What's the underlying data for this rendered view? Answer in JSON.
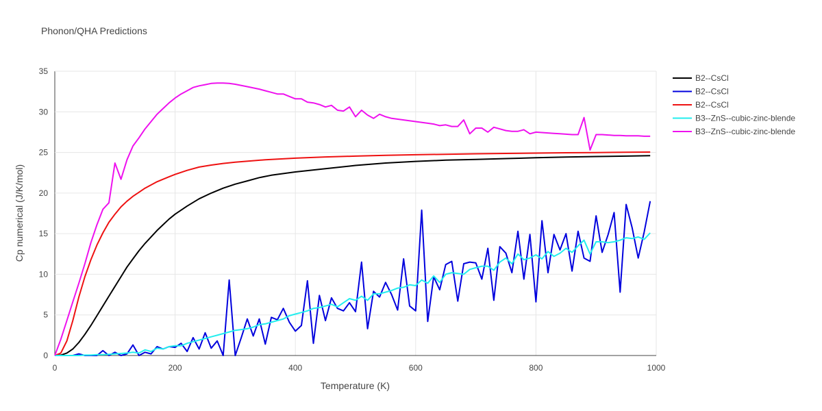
{
  "chart_data": {
    "type": "line",
    "title": "Phonon/QHA Predictions",
    "xlabel": "Temperature (K)",
    "ylabel": "Cp numerical (J/K/mol)",
    "xlim": [
      0,
      1000
    ],
    "ylim": [
      0,
      35
    ],
    "xticks": [
      0,
      200,
      400,
      600,
      800,
      1000
    ],
    "yticks": [
      0,
      5,
      10,
      15,
      20,
      25,
      30,
      35
    ],
    "grid": true,
    "legend_position": "right",
    "series": [
      {
        "name": "B2--CsCl",
        "color": "#000000",
        "x": [
          0,
          10,
          20,
          30,
          40,
          50,
          60,
          70,
          80,
          90,
          100,
          110,
          120,
          130,
          140,
          150,
          160,
          170,
          180,
          190,
          200,
          220,
          240,
          260,
          280,
          300,
          320,
          340,
          360,
          380,
          400,
          450,
          500,
          550,
          600,
          650,
          700,
          750,
          800,
          850,
          900,
          950,
          990
        ],
        "y": [
          0,
          0.05,
          0.3,
          0.8,
          1.6,
          2.6,
          3.7,
          4.9,
          6.1,
          7.3,
          8.5,
          9.7,
          10.9,
          11.9,
          12.9,
          13.8,
          14.6,
          15.4,
          16.1,
          16.8,
          17.4,
          18.4,
          19.3,
          20.0,
          20.6,
          21.1,
          21.5,
          21.9,
          22.2,
          22.4,
          22.6,
          23.0,
          23.4,
          23.7,
          23.9,
          24.05,
          24.15,
          24.25,
          24.35,
          24.43,
          24.5,
          24.55,
          24.6
        ]
      },
      {
        "name": "B2--CsCl",
        "color": "#0000dd",
        "x": [
          0,
          10,
          20,
          30,
          40,
          50,
          60,
          70,
          80,
          90,
          100,
          110,
          120,
          130,
          140,
          150,
          160,
          170,
          180,
          190,
          200,
          210,
          220,
          230,
          240,
          250,
          260,
          270,
          280,
          290,
          300,
          310,
          320,
          330,
          340,
          350,
          360,
          370,
          380,
          390,
          400,
          410,
          420,
          430,
          440,
          450,
          460,
          470,
          480,
          490,
          500,
          510,
          520,
          530,
          540,
          550,
          560,
          570,
          580,
          590,
          600,
          610,
          620,
          630,
          640,
          650,
          660,
          670,
          680,
          690,
          700,
          710,
          720,
          730,
          740,
          750,
          760,
          770,
          780,
          790,
          800,
          810,
          820,
          830,
          840,
          850,
          860,
          870,
          880,
          890,
          900,
          910,
          920,
          930,
          940,
          950,
          960,
          970,
          980,
          990
        ],
        "y": [
          0,
          0,
          0,
          0,
          0.2,
          0,
          0,
          0,
          0.6,
          0,
          0.4,
          0,
          0.2,
          1.3,
          0,
          0.4,
          0.2,
          1.1,
          0.8,
          1.1,
          1.0,
          1.5,
          0.5,
          2.2,
          0.8,
          2.8,
          0.9,
          1.8,
          0,
          9.3,
          0,
          2.2,
          4.5,
          2.4,
          4.5,
          1.4,
          4.7,
          4.4,
          5.8,
          4.1,
          3.0,
          3.7,
          9.2,
          1.5,
          7.4,
          4.3,
          7.1,
          5.8,
          5.5,
          6.5,
          5.4,
          11.5,
          3.3,
          7.9,
          7.2,
          9.0,
          7.5,
          5.6,
          11.9,
          6.1,
          5.5,
          17.9,
          4.2,
          9.7,
          8.1,
          11.2,
          11.6,
          6.7,
          11.3,
          11.5,
          11.4,
          9.4,
          13.2,
          6.8,
          13.4,
          12.6,
          10.2,
          15.3,
          9.4,
          14.9,
          6.6,
          16.6,
          10.2,
          14.9,
          13.0,
          15.0,
          10.4,
          15.3,
          12.0,
          11.6,
          17.2,
          12.7,
          14.9,
          17.6,
          7.8,
          18.6,
          15.7,
          12.0,
          15.2,
          19.0
        ]
      },
      {
        "name": "B2--CsCl",
        "color": "#ee1111",
        "x": [
          0,
          10,
          20,
          30,
          40,
          50,
          60,
          70,
          80,
          90,
          100,
          110,
          120,
          130,
          140,
          150,
          160,
          170,
          180,
          190,
          200,
          220,
          240,
          260,
          280,
          300,
          350,
          400,
          450,
          500,
          550,
          600,
          650,
          700,
          750,
          800,
          850,
          900,
          950,
          990
        ],
        "y": [
          0,
          0.3,
          1.8,
          4.3,
          7.2,
          9.7,
          11.8,
          13.6,
          15.1,
          16.4,
          17.4,
          18.3,
          19.0,
          19.6,
          20.1,
          20.6,
          21.0,
          21.4,
          21.7,
          22.0,
          22.3,
          22.8,
          23.2,
          23.45,
          23.65,
          23.8,
          24.1,
          24.3,
          24.45,
          24.55,
          24.65,
          24.72,
          24.78,
          24.84,
          24.88,
          24.92,
          24.96,
          24.99,
          25.02,
          25.05
        ]
      },
      {
        "name": "B3--ZnS--cubic-zinc-blende",
        "color": "#22eeee",
        "x": [
          0,
          10,
          20,
          30,
          40,
          50,
          60,
          70,
          80,
          90,
          100,
          110,
          120,
          130,
          140,
          150,
          160,
          170,
          180,
          190,
          200,
          210,
          220,
          230,
          240,
          250,
          260,
          270,
          280,
          290,
          300,
          310,
          320,
          330,
          340,
          350,
          360,
          370,
          380,
          390,
          400,
          410,
          420,
          430,
          440,
          450,
          460,
          470,
          480,
          490,
          500,
          510,
          520,
          530,
          540,
          550,
          560,
          570,
          580,
          590,
          600,
          610,
          620,
          630,
          640,
          650,
          660,
          670,
          680,
          690,
          700,
          710,
          720,
          730,
          740,
          750,
          760,
          770,
          780,
          790,
          800,
          810,
          820,
          830,
          840,
          850,
          860,
          870,
          880,
          890,
          900,
          910,
          920,
          930,
          940,
          950,
          960,
          970,
          980,
          990
        ],
        "y": [
          0,
          0,
          0,
          0,
          0,
          0.05,
          0.05,
          0.1,
          0.1,
          0.15,
          0.2,
          0.25,
          0.3,
          0.4,
          0.3,
          0.7,
          0.5,
          0.9,
          0.8,
          1.1,
          1.2,
          1.2,
          1.5,
          1.7,
          1.9,
          2.1,
          2.3,
          2.5,
          2.7,
          2.9,
          3.1,
          3.2,
          3.3,
          3.5,
          3.8,
          3.9,
          4.1,
          4.3,
          4.5,
          4.9,
          5.1,
          5.3,
          5.5,
          5.8,
          5.9,
          6.1,
          6.3,
          6.0,
          6.5,
          7.0,
          6.8,
          7.3,
          6.8,
          7.6,
          7.6,
          7.8,
          8.0,
          8.3,
          8.4,
          8.7,
          8.6,
          9.3,
          8.9,
          9.8,
          9.0,
          10.0,
          10.2,
          10.1,
          10.0,
          10.6,
          10.8,
          11.0,
          11.0,
          10.5,
          11.5,
          12.0,
          11.3,
          12.5,
          11.8,
          12.0,
          12.4,
          11.9,
          12.8,
          12.2,
          12.6,
          13.2,
          12.7,
          13.5,
          14.2,
          12.5,
          14.0,
          14.0,
          13.9,
          14.0,
          14.2,
          14.5,
          14.4,
          14.6,
          14.3,
          15.1
        ]
      },
      {
        "name": "B3--ZnS--cubic-zinc-blende",
        "color": "#ee11ee",
        "x": [
          0,
          10,
          20,
          30,
          40,
          50,
          60,
          70,
          80,
          90,
          100,
          110,
          120,
          130,
          140,
          150,
          160,
          170,
          180,
          190,
          200,
          210,
          220,
          230,
          240,
          250,
          260,
          270,
          280,
          290,
          300,
          320,
          340,
          350,
          360,
          370,
          380,
          390,
          400,
          410,
          420,
          430,
          440,
          450,
          460,
          470,
          480,
          490,
          500,
          510,
          520,
          530,
          540,
          550,
          560,
          580,
          600,
          620,
          630,
          640,
          650,
          660,
          670,
          680,
          690,
          700,
          710,
          720,
          730,
          740,
          750,
          760,
          770,
          780,
          790,
          800,
          810,
          820,
          830,
          840,
          850,
          860,
          870,
          880,
          890,
          900,
          910,
          920,
          930,
          940,
          950,
          960,
          970,
          980,
          990
        ],
        "y": [
          0,
          2.0,
          4.3,
          6.6,
          8.9,
          11.3,
          13.9,
          16.1,
          18.0,
          18.8,
          23.7,
          21.7,
          24.1,
          25.8,
          26.8,
          27.9,
          28.8,
          29.7,
          30.4,
          31.1,
          31.7,
          32.2,
          32.6,
          33.0,
          33.2,
          33.35,
          33.5,
          33.55,
          33.55,
          33.5,
          33.4,
          33.1,
          32.8,
          32.6,
          32.4,
          32.2,
          32.2,
          31.9,
          31.6,
          31.6,
          31.2,
          31.1,
          30.9,
          30.6,
          30.8,
          30.2,
          30.1,
          30.6,
          29.4,
          30.2,
          29.6,
          29.2,
          29.7,
          29.4,
          29.2,
          29.0,
          28.8,
          28.6,
          28.5,
          28.3,
          28.4,
          28.2,
          28.2,
          29.0,
          27.3,
          28.0,
          28.0,
          27.5,
          28.1,
          27.9,
          27.7,
          27.6,
          27.6,
          27.8,
          27.3,
          27.5,
          27.45,
          27.4,
          27.35,
          27.3,
          27.25,
          27.2,
          27.2,
          29.3,
          25.3,
          27.2,
          27.2,
          27.15,
          27.1,
          27.1,
          27.05,
          27.05,
          27.05,
          27.0,
          27.0
        ]
      }
    ]
  }
}
